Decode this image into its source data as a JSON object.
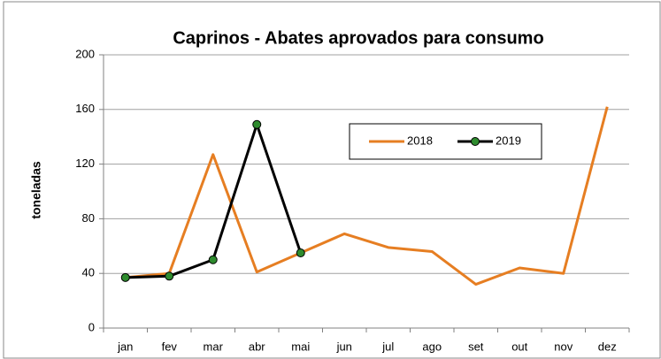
{
  "chart_data": {
    "type": "line",
    "title": "Caprinos - Abates aprovados para consumo",
    "y_label": "toneladas",
    "categories": [
      "jan",
      "fev",
      "mar",
      "abr",
      "mai",
      "jun",
      "jul",
      "ago",
      "set",
      "out",
      "nov",
      "dez"
    ],
    "series": [
      {
        "name": "2018",
        "color": "#e67e22",
        "values": [
          37,
          40,
          127,
          41,
          55,
          69,
          59,
          56,
          32,
          44,
          40,
          162
        ]
      },
      {
        "name": "2019",
        "color": "#000000",
        "marker_color": "#2e8b2e",
        "values": [
          37,
          38,
          50,
          149,
          55,
          null,
          null,
          null,
          null,
          null,
          null,
          null
        ]
      }
    ],
    "ylim": [
      0,
      200
    ],
    "yticks": [
      0,
      40,
      80,
      120,
      160,
      200
    ],
    "grid": true,
    "legend": "upper center"
  }
}
